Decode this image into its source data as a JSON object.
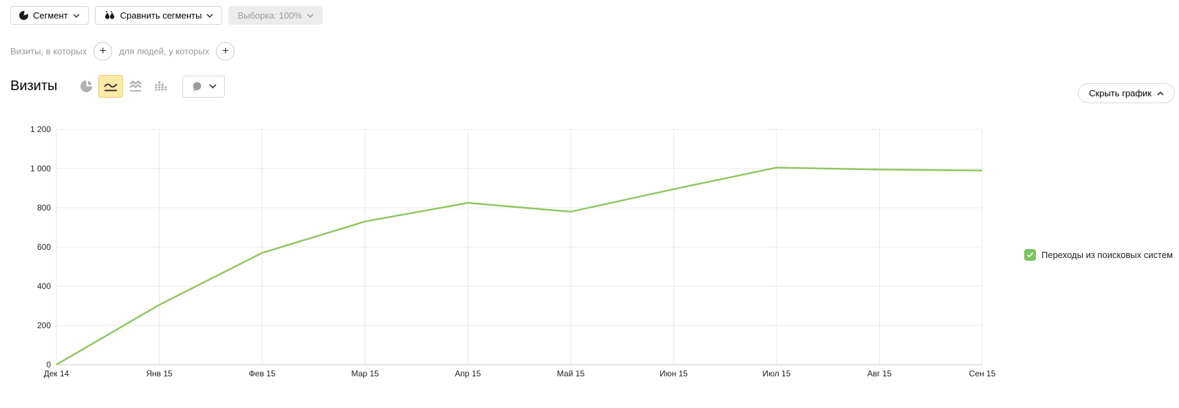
{
  "toolbar": {
    "segment_label": "Сегмент",
    "compare_label": "Сравнить сегменты",
    "sampling_label": "Выборка: 100%"
  },
  "segmentation": {
    "visits_label": "Визиты, в которых",
    "people_label": "для людей, у которых"
  },
  "chart_header": {
    "title": "Визиты",
    "hide_chart_label": "Скрыть график"
  },
  "legend": {
    "items": [
      {
        "label": "Переходы из поисковых систем",
        "color": "#7bc35e",
        "checked": true
      }
    ]
  },
  "chart_data": {
    "type": "line",
    "title": "Визиты",
    "x": [
      "Дек 14",
      "Янв 15",
      "Фев 15",
      "Мар 15",
      "Апр 15",
      "Май 15",
      "Июн 15",
      "Июл 15",
      "Авг 15",
      "Сен 15"
    ],
    "series": [
      {
        "name": "Переходы из поисковых систем",
        "color": "#93c462",
        "values": [
          0,
          305,
          570,
          730,
          825,
          780,
          895,
          1005,
          995,
          990
        ]
      }
    ],
    "ylim": [
      0,
      1200
    ],
    "yticks": [
      {
        "value": 0,
        "label": "0"
      },
      {
        "value": 200,
        "label": "200"
      },
      {
        "value": 400,
        "label": "400"
      },
      {
        "value": 600,
        "label": "600"
      },
      {
        "value": 800,
        "label": "800"
      },
      {
        "value": 1000,
        "label": "1 000"
      },
      {
        "value": 1200,
        "label": "1 200"
      }
    ],
    "grid": true,
    "legend_position": "right",
    "colors": {
      "grid": "#e8e8e8",
      "axis": "#c6c6c6"
    }
  }
}
